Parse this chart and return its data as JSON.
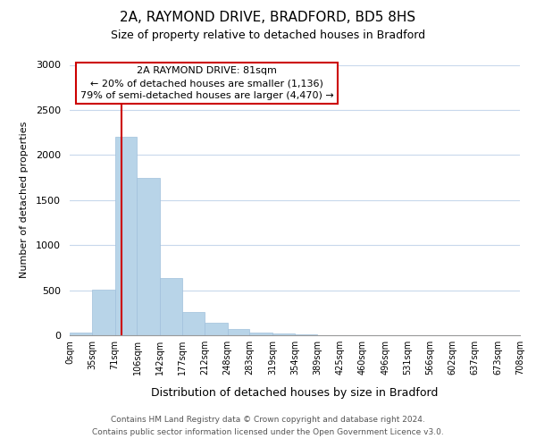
{
  "title1": "2A, RAYMOND DRIVE, BRADFORD, BD5 8HS",
  "title2": "Size of property relative to detached houses in Bradford",
  "xlabel": "Distribution of detached houses by size in Bradford",
  "ylabel": "Number of detached properties",
  "bar_color": "#b8d4e8",
  "bar_edge_color": "#a0c0dc",
  "vline_color": "#cc0000",
  "vline_x": 81,
  "bin_edges": [
    0,
    35,
    71,
    106,
    142,
    177,
    212,
    248,
    283,
    319,
    354,
    389,
    425,
    460,
    496,
    531,
    566,
    602,
    637,
    673,
    708
  ],
  "bar_heights": [
    30,
    510,
    2200,
    1750,
    635,
    260,
    135,
    70,
    30,
    20,
    5,
    2,
    1,
    0,
    0,
    0,
    0,
    0,
    0,
    0
  ],
  "tick_labels": [
    "0sqm",
    "35sqm",
    "71sqm",
    "106sqm",
    "142sqm",
    "177sqm",
    "212sqm",
    "248sqm",
    "283sqm",
    "319sqm",
    "354sqm",
    "389sqm",
    "425sqm",
    "460sqm",
    "496sqm",
    "531sqm",
    "566sqm",
    "602sqm",
    "637sqm",
    "673sqm",
    "708sqm"
  ],
  "ylim": [
    0,
    3000
  ],
  "yticks": [
    0,
    500,
    1000,
    1500,
    2000,
    2500,
    3000
  ],
  "annotation_title": "2A RAYMOND DRIVE: 81sqm",
  "annotation_line1": "← 20% of detached houses are smaller (1,136)",
  "annotation_line2": "79% of semi-detached houses are larger (4,470) →",
  "footer1": "Contains HM Land Registry data © Crown copyright and database right 2024.",
  "footer2": "Contains public sector information licensed under the Open Government Licence v3.0.",
  "bg_color": "#ffffff",
  "grid_color": "#c8d8ec"
}
